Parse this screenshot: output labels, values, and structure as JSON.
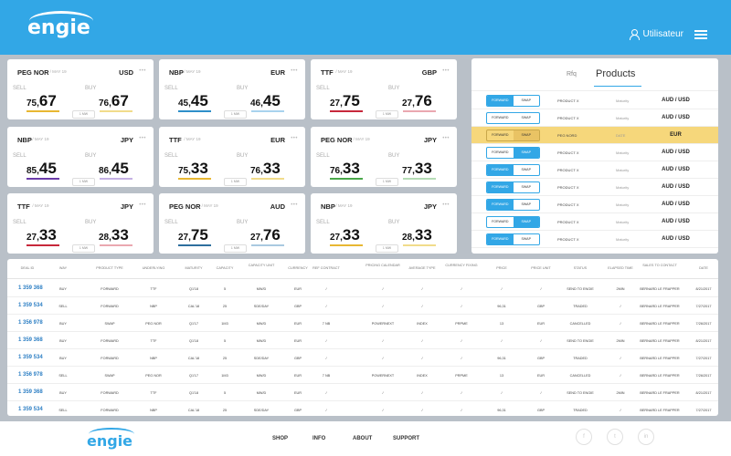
{
  "header": {
    "logo": "engie",
    "user_label": "Utilisateur"
  },
  "cards": [
    {
      "pair": "PEG NOR",
      "date": "/ MAY 19",
      "currency": "USD",
      "sell_int": "75,",
      "sell_dec": "67",
      "buy_int": "76,",
      "buy_dec": "67",
      "sell_color": "#e8b732",
      "buy_color": "#f1dc8b"
    },
    {
      "pair": "NBP",
      "date": "/ MAY 19",
      "currency": "EUR",
      "sell_int": "45,",
      "sell_dec": "45",
      "buy_int": "46,",
      "buy_dec": "45",
      "sell_color": "#2e8fc9",
      "buy_color": "#a9d3ee"
    },
    {
      "pair": "TTF",
      "date": "/ MAY 19",
      "currency": "GBP",
      "sell_int": "27,",
      "sell_dec": "75",
      "buy_int": "27,",
      "buy_dec": "76",
      "sell_color": "#c7283b",
      "buy_color": "#eaa8b0"
    },
    {
      "pair": "NBP",
      "date": "/ MAY 19",
      "currency": "JPY",
      "sell_int": "85,",
      "sell_dec": "45",
      "buy_int": "86,",
      "buy_dec": "45",
      "sell_color": "#6a3aa8",
      "buy_color": "#c5b0e3"
    },
    {
      "pair": "TTF",
      "date": "/ MAY 19",
      "currency": "EUR",
      "sell_int": "75,",
      "sell_dec": "33",
      "buy_int": "76,",
      "buy_dec": "33",
      "sell_color": "#e8b732",
      "buy_color": "#f1dc8b"
    },
    {
      "pair": "PEG NOR",
      "date": "/ MAY 19",
      "currency": "JPY",
      "sell_int": "76,",
      "sell_dec": "33",
      "buy_int": "77,",
      "buy_dec": "33",
      "sell_color": "#4aa84a",
      "buy_color": "#b5dcb5"
    },
    {
      "pair": "TTF",
      "date": "/ MAY 19",
      "currency": "JPY",
      "sell_int": "27,",
      "sell_dec": "33",
      "buy_int": "28,",
      "buy_dec": "33",
      "sell_color": "#c7283b",
      "buy_color": "#eaa8b0"
    },
    {
      "pair": "PEG NOR",
      "date": "/ MAY 19",
      "currency": "AUD",
      "sell_int": "27,",
      "sell_dec": "75",
      "buy_int": "27,",
      "buy_dec": "76",
      "sell_color": "#2e6f9e",
      "buy_color": "#a9c9e0"
    },
    {
      "pair": "NBP",
      "date": "/ MAY 19",
      "currency": "JPY",
      "sell_int": "27,",
      "sell_dec": "33",
      "buy_int": "28,",
      "buy_dec": "33",
      "sell_color": "#e8b732",
      "buy_color": "#f1dc8b"
    }
  ],
  "card_labels": {
    "sell": "SELL",
    "buy": "BUY",
    "dots": "•••",
    "spread": "1   MW"
  },
  "products": {
    "tab_rfq": "Rfq",
    "tab_products": "Products",
    "rows": [
      {
        "toggle": [
          "FORWARD",
          "SWAP"
        ],
        "active": 0,
        "product": "PRODUCT X",
        "type": "Maturity",
        "currency": "AUD / USD",
        "highlight": false
      },
      {
        "toggle": [
          "FORWARD",
          "SWAP"
        ],
        "active": -1,
        "product": "PRODUCT X",
        "type": "Maturity",
        "currency": "AUD / USD",
        "highlight": false
      },
      {
        "toggle": [
          "FORWARD",
          "SWAP"
        ],
        "active": 1,
        "product": "PEG NORD",
        "type": "DATE",
        "currency": "EUR",
        "highlight": true
      },
      {
        "toggle": [
          "FORWARD",
          "SWAP"
        ],
        "active": 1,
        "product": "PRODUCT X",
        "type": "Maturity",
        "currency": "AUD / USD",
        "highlight": false
      },
      {
        "toggle": [
          "FORWARD",
          "SWAP"
        ],
        "active": 0,
        "product": "PRODUCT X",
        "type": "Maturity",
        "currency": "AUD / USD",
        "highlight": false
      },
      {
        "toggle": [
          "FORWARD",
          "SWAP"
        ],
        "active": 0,
        "product": "PRODUCT X",
        "type": "Maturity",
        "currency": "AUD / USD",
        "highlight": false
      },
      {
        "toggle": [
          "FORWARD",
          "SWAP"
        ],
        "active": 0,
        "product": "PRODUCT X",
        "type": "Maturity",
        "currency": "AUD / USD",
        "highlight": false
      },
      {
        "toggle": [
          "FORWARD",
          "SWAP"
        ],
        "active": 1,
        "product": "PRODUCT X",
        "type": "Maturity",
        "currency": "AUD / USD",
        "highlight": false
      },
      {
        "toggle": [
          "FORWARD",
          "SWAP"
        ],
        "active": 0,
        "product": "PRODUCT X",
        "type": "Maturity",
        "currency": "AUD / USD",
        "highlight": false
      }
    ]
  },
  "deals": {
    "headers": [
      "DEAL ID",
      "WAY",
      "PRODUCT TYPE",
      "UNDERLYING",
      "MATURITY",
      "CAPACITY",
      "CAPACITY UNIT",
      "CURRENCY",
      "REF CONTRACT",
      "PRICING CALENDAR",
      "AVERAGE TYPE",
      "CURRENCY FIXING",
      "PRICE",
      "PRICE UNIT",
      "STATUS",
      "ELAPSED TIME",
      "SALES TO CONTACT",
      "DATE"
    ],
    "rows": [
      [
        "1 359 368",
        "BUY",
        "FORWARD",
        "TTF",
        "Q1'18",
        "5",
        "MW/D",
        "EUR",
        "/",
        "/",
        "/",
        "/",
        "/",
        "/",
        "SEND TO ENGIE",
        "2MIN",
        "BERNARD LE FRAPPER",
        "8/21/2017"
      ],
      [
        "1 359 534",
        "SELL",
        "FORWARD",
        "NBP",
        "CAL'18",
        "25",
        "SDE/DAY",
        "GBP",
        "/",
        "/",
        "/",
        "/",
        "96,31",
        "GBP",
        "TRADED",
        "/",
        "BERNARD LE FRAPPER",
        "7/27/2017"
      ],
      [
        "1 356 978",
        "BUY",
        "SWAP",
        "PEG NOR",
        "Q1'17",
        "1M3",
        "MW/D",
        "EUR",
        "7 NB",
        "POWERNEXT",
        "INDEX",
        "PRPME",
        "13",
        "EUR",
        "CANCELLED",
        "/",
        "BERNARD LE FRAPPER",
        "7/26/2017"
      ],
      [
        "1 359 368",
        "BUY",
        "FORWARD",
        "TTF",
        "Q1'18",
        "5",
        "MW/D",
        "EUR",
        "/",
        "/",
        "/",
        "/",
        "/",
        "/",
        "SEND TO ENGIE",
        "2MIN",
        "BERNARD LE FRAPPER",
        "8/21/2017"
      ],
      [
        "1 359 534",
        "BUY",
        "FORWARD",
        "NBP",
        "CAL'18",
        "25",
        "SDE/DAY",
        "GBP",
        "/",
        "/",
        "/",
        "/",
        "96,31",
        "GBP",
        "TRADED",
        "/",
        "BERNARD LE FRAPPER",
        "7/27/2017"
      ],
      [
        "1 356 978",
        "SELL",
        "SWAP",
        "PEG NOR",
        "Q1'17",
        "1M3",
        "MW/D",
        "EUR",
        "7 NB",
        "POWERNEXT",
        "INDEX",
        "PRPME",
        "13",
        "EUR",
        "CANCELLED",
        "/",
        "BERNARD LE FRAPPER",
        "7/26/2017"
      ],
      [
        "1 359 368",
        "BUY",
        "FORWARD",
        "TTF",
        "Q1'18",
        "5",
        "MW/D",
        "EUR",
        "/",
        "/",
        "/",
        "/",
        "/",
        "/",
        "SEND TO ENGIE",
        "2MIN",
        "BERNARD LE FRAPPER",
        "8/21/2017"
      ],
      [
        "1 359 534",
        "SELL",
        "FORWARD",
        "NBP",
        "CAL'18",
        "25",
        "SDE/DAY",
        "GBP",
        "/",
        "/",
        "/",
        "/",
        "96,31",
        "GBP",
        "TRADED",
        "/",
        "BERNARD LE FRAPPER",
        "7/27/2017"
      ]
    ]
  },
  "footer": {
    "logo": "engie",
    "links": [
      "SHOP",
      "INFO",
      "ABOUT",
      "SUPPORT"
    ],
    "social": [
      {
        "icon": "facebook-icon",
        "glyph": "f"
      },
      {
        "icon": "twitter-icon",
        "glyph": "t"
      },
      {
        "icon": "linkedin-icon",
        "glyph": "in"
      }
    ]
  }
}
